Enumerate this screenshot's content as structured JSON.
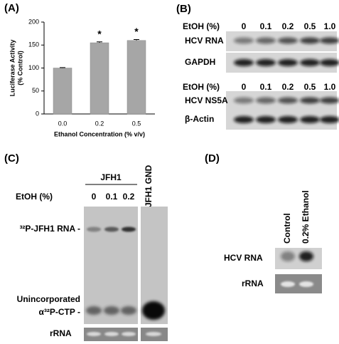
{
  "chart_data": {
    "type": "bar",
    "panel_label": "(A)",
    "ylabel": [
      "Luciferase Activity",
      "(% Control)"
    ],
    "xlabel": "Ethanol Concentration (% v/v)",
    "categories": [
      "0.0",
      "0.2",
      "0.5"
    ],
    "values": [
      100,
      155,
      160
    ],
    "errors": [
      1,
      2,
      2
    ],
    "color": "#a6a6a6",
    "ylim": [
      0,
      200
    ],
    "yticks": [
      0,
      50,
      100,
      150,
      200
    ],
    "annotations": [
      {
        "category": "0.2",
        "text": "*"
      },
      {
        "category": "0.5",
        "text": "*"
      }
    ]
  },
  "panel_b": {
    "label": "(B)",
    "blots": [
      {
        "treatment_label": "EtOH (%)",
        "lanes": [
          "0",
          "0.1",
          "0.2",
          "0.5",
          "1.0"
        ],
        "rows": [
          "HCV RNA",
          "GAPDH"
        ]
      },
      {
        "treatment_label": "EtOH (%)",
        "lanes": [
          "0",
          "0.1",
          "0.2",
          "0.5",
          "1.0"
        ],
        "rows": [
          "HCV NS5A",
          "β-Actin"
        ]
      }
    ]
  },
  "panel_c": {
    "label": "(C)",
    "group": "JFH1",
    "control_lane": "JFH1 GND",
    "treatment_label": "EtOH (%)",
    "lanes": [
      "0",
      "0.1",
      "0.2"
    ],
    "bands": [
      [
        "³²P-JFH1 RNA -"
      ],
      [
        "Unincorporated",
        "α³²P-CTP -"
      ]
    ],
    "loading": "rRNA"
  },
  "panel_d": {
    "label": "(D)",
    "lanes": [
      "Control",
      "0.2% Ethanol"
    ],
    "rows": [
      "HCV RNA",
      "rRNA"
    ]
  }
}
